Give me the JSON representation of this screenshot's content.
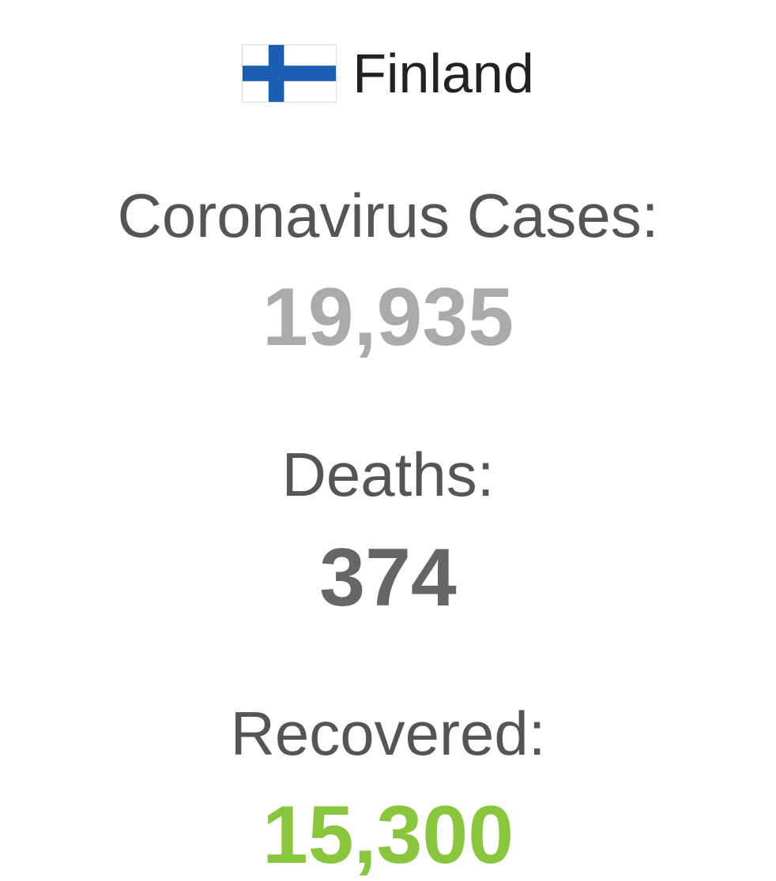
{
  "header": {
    "top_text_cut": "",
    "flag_icon": "finland-flag-icon",
    "country": "Finland"
  },
  "stats": {
    "cases_label": "Coronavirus Cases:",
    "cases_value": "19,935",
    "deaths_label": "Deaths:",
    "deaths_value": "374",
    "recovered_label": "Recovered:",
    "recovered_value": "15,300"
  },
  "colors": {
    "flag_blue": "#1a5fb4",
    "cases_value": "#aaaaaa",
    "deaths_value": "#666666",
    "recovered_value": "#8ac53e"
  }
}
